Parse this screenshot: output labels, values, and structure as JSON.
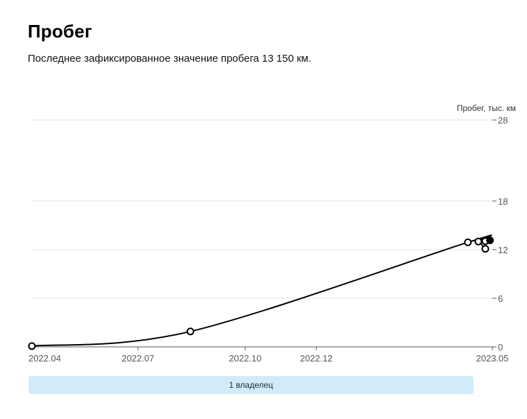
{
  "header": {
    "title": "Пробег",
    "subtitle": "Последнее зафиксированное значение пробега 13 150 км."
  },
  "chart_data": {
    "type": "line",
    "ylabel": "Пробег, тыс. км",
    "ylim": [
      0,
      28
    ],
    "y_ticks": [
      0,
      6,
      12,
      18,
      28
    ],
    "y_tick_labels": [
      "0",
      "6",
      "12",
      "18",
      "28"
    ],
    "x_range": [
      "2022-04-01",
      "2023-05-01"
    ],
    "x_ticks": [
      "2022-04-01",
      "2022-07-01",
      "2022-10-01",
      "2022-12-01",
      "2023-05-01"
    ],
    "x_tick_labels": [
      "2022.04",
      "2022.07",
      "2022.10",
      "2022.12",
      "2023.05"
    ],
    "grid": true,
    "series": [
      {
        "values": [
          {
            "date": "2022-04-01",
            "value": 0.1
          },
          {
            "date": "2022-08-15",
            "value": 1.9
          },
          {
            "date": "2023-04-10",
            "value": 12.9
          },
          {
            "date": "2023-04-19",
            "value": 13.0
          },
          {
            "date": "2023-04-25",
            "value": 12.1
          },
          {
            "date": "2023-04-25",
            "value": 13.05
          },
          {
            "date": "2023-04-29",
            "value": 13.15
          }
        ],
        "last_point_filled": true
      }
    ],
    "colors": {
      "line": "#000000",
      "grid": "#e2e2e2",
      "axis": "#555555",
      "tick_text": "#555555"
    }
  },
  "owners": {
    "label": "1 владелец",
    "color": "#d2ebfb"
  }
}
